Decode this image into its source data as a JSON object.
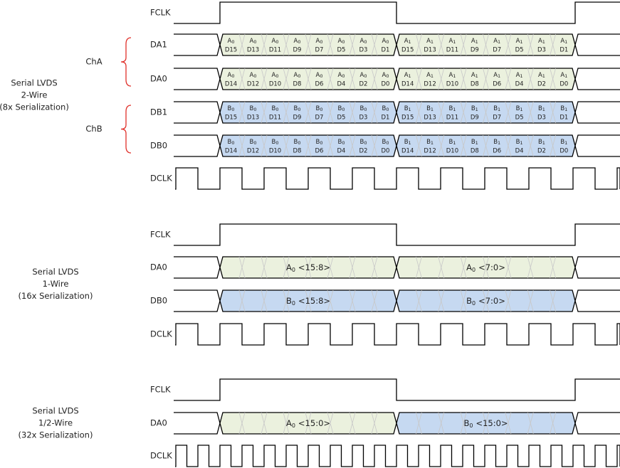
{
  "sections": [
    {
      "label": [
        "Serial LVDS",
        "2-Wire",
        "(8x Serialization)"
      ],
      "groups": [
        {
          "name": "ChA"
        },
        {
          "name": "ChB"
        }
      ],
      "signals": [
        {
          "name": "FCLK"
        },
        {
          "name": "DA1",
          "halves": [
            {
              "letter": "A",
              "sub": "0",
              "bits": [
                "D15",
                "D13",
                "D11",
                "D9",
                "D7",
                "D5",
                "D3",
                "D1"
              ]
            },
            {
              "letter": "A",
              "sub": "1",
              "bits": [
                "D15",
                "D13",
                "D11",
                "D9",
                "D7",
                "D5",
                "D3",
                "D1"
              ]
            }
          ]
        },
        {
          "name": "DA0",
          "halves": [
            {
              "letter": "A",
              "sub": "0",
              "bits": [
                "D14",
                "D12",
                "D10",
                "D8",
                "D6",
                "D4",
                "D2",
                "D0"
              ]
            },
            {
              "letter": "A",
              "sub": "1",
              "bits": [
                "D14",
                "D12",
                "D10",
                "D8",
                "D6",
                "D4",
                "D2",
                "D0"
              ]
            }
          ]
        },
        {
          "name": "DB1",
          "halves": [
            {
              "letter": "B",
              "sub": "0",
              "bits": [
                "D15",
                "D13",
                "D11",
                "D9",
                "D7",
                "D5",
                "D3",
                "D1"
              ]
            },
            {
              "letter": "B",
              "sub": "1",
              "bits": [
                "D15",
                "D13",
                "D11",
                "D9",
                "D7",
                "D5",
                "D3",
                "D1"
              ]
            }
          ]
        },
        {
          "name": "DB0",
          "halves": [
            {
              "letter": "B",
              "sub": "0",
              "bits": [
                "D14",
                "D12",
                "D10",
                "D8",
                "D6",
                "D4",
                "D2",
                "D0"
              ]
            },
            {
              "letter": "B",
              "sub": "1",
              "bits": [
                "D14",
                "D12",
                "D10",
                "D8",
                "D6",
                "D4",
                "D2",
                "D0"
              ]
            }
          ]
        },
        {
          "name": "DCLK"
        }
      ]
    },
    {
      "label": [
        "Serial LVDS",
        "1-Wire",
        "(16x Serialization)"
      ],
      "signals": [
        {
          "name": "FCLK"
        },
        {
          "name": "DA0",
          "halves": [
            {
              "letter": "A",
              "sub": "0",
              "range": "<15:8>"
            },
            {
              "letter": "A",
              "sub": "0",
              "range": "<7:0>"
            }
          ]
        },
        {
          "name": "DB0",
          "halves": [
            {
              "letter": "B",
              "sub": "0",
              "range": "<15:8>"
            },
            {
              "letter": "B",
              "sub": "0",
              "range": "<7:0>"
            }
          ]
        },
        {
          "name": "DCLK"
        }
      ]
    },
    {
      "label": [
        "Serial LVDS",
        "1/2-Wire",
        "(32x Serialization)"
      ],
      "signals": [
        {
          "name": "FCLK"
        },
        {
          "name": "DA0",
          "halves": [
            {
              "letter": "A",
              "sub": "0",
              "range": "<15:0>"
            },
            {
              "letter": "B",
              "sub": "0",
              "range": "<15:0>"
            }
          ]
        },
        {
          "name": "DCLK"
        }
      ]
    }
  ]
}
